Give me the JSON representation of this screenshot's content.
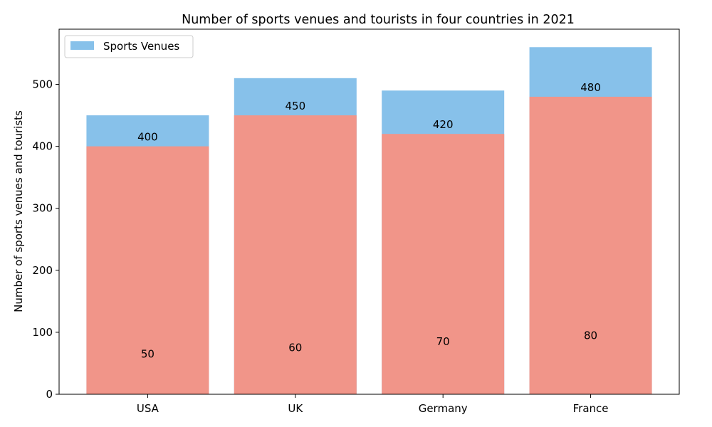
{
  "chart_data": {
    "type": "bar",
    "title": "Number of sports venues and tourists in four countries in 2021",
    "xlabel": "",
    "ylabel": "Number of sports venues and tourists",
    "categories": [
      "USA",
      "UK",
      "Germany",
      "France"
    ],
    "series": [
      {
        "name": "Sports Venues",
        "values": [
          450,
          510,
          490,
          560
        ],
        "color": "#87c1ea"
      },
      {
        "values": [
          400,
          450,
          420,
          480
        ],
        "color": "#f19589"
      }
    ],
    "data_labels": {
      "top": [
        "400",
        "450",
        "420",
        "480"
      ],
      "bottom": [
        "50",
        "60",
        "70",
        "80"
      ]
    },
    "bottom_label_values": [
      50,
      60,
      70,
      80
    ],
    "ylim": [
      0,
      589
    ],
    "yticks": [
      0,
      100,
      200,
      300,
      400,
      500
    ],
    "grid": false,
    "legend_position": "top-left"
  }
}
